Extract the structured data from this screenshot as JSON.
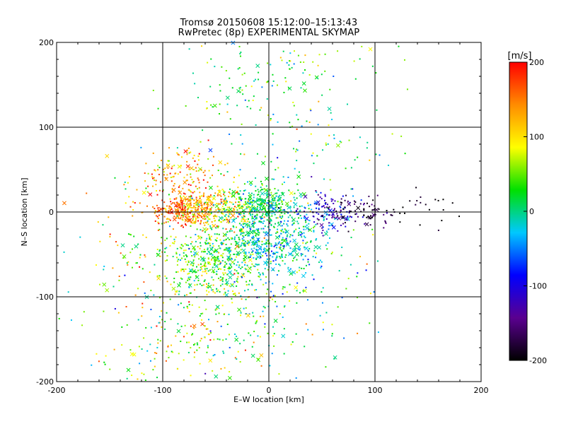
{
  "chart_data": {
    "type": "scatter",
    "title": "Tromsø 20150608 15:12:00–15:13:43",
    "subtitle": "RwPretec (8p) EXPERIMENTAL SKYMAP",
    "xlabel": "E–W location [km]",
    "ylabel": "N–S location [km]",
    "xlim": [
      -200,
      200
    ],
    "ylim": [
      -200,
      200
    ],
    "xticks": [
      -200,
      -100,
      0,
      100,
      200
    ],
    "yticks": [
      -200,
      -100,
      0,
      100,
      200
    ],
    "grid": true,
    "colorbar": {
      "label": "[m/s]",
      "range": [
        -200,
        200
      ],
      "ticks": [
        200,
        100,
        0,
        -100,
        -200
      ],
      "colormap": [
        "#000000",
        "#5a0090",
        "#0000ff",
        "#00c8ff",
        "#00e000",
        "#ffff00",
        "#ff8c00",
        "#ff0000"
      ]
    },
    "point_clusters": [
      {
        "x": -80,
        "y": 3,
        "sx": 14,
        "sy": 9,
        "n": 260,
        "v": 155,
        "vs": 35
      },
      {
        "x": -45,
        "y": 5,
        "sx": 18,
        "sy": 12,
        "n": 220,
        "v": 105,
        "vs": 35
      },
      {
        "x": -5,
        "y": 10,
        "sx": 15,
        "sy": 12,
        "n": 260,
        "v": 15,
        "vs": 30
      },
      {
        "x": -55,
        "y": -60,
        "sx": 28,
        "sy": 22,
        "n": 420,
        "v": 45,
        "vs": 40
      },
      {
        "x": -10,
        "y": -35,
        "sx": 25,
        "sy": 22,
        "n": 380,
        "v": -5,
        "vs": 35
      },
      {
        "x": 15,
        "y": -30,
        "sx": 25,
        "sy": 25,
        "n": 220,
        "v": -20,
        "vs": 30
      },
      {
        "x": 55,
        "y": 0,
        "sx": 15,
        "sy": 10,
        "n": 110,
        "v": -120,
        "vs": 30
      },
      {
        "x": 90,
        "y": -2,
        "sx": 15,
        "sy": 8,
        "n": 80,
        "v": -175,
        "vs": 25
      },
      {
        "x": 150,
        "y": 8,
        "sx": 15,
        "sy": 10,
        "n": 20,
        "v": -195,
        "vs": 15
      },
      {
        "x": -80,
        "y": 40,
        "sx": 22,
        "sy": 20,
        "n": 160,
        "v": 130,
        "vs": 45
      },
      {
        "x": 0,
        "y": 150,
        "sx": 45,
        "sy": 35,
        "n": 160,
        "v": 30,
        "vs": 50
      },
      {
        "x": -80,
        "y": -140,
        "sx": 45,
        "sy": 35,
        "n": 200,
        "v": 60,
        "vs": 60
      },
      {
        "x": 0,
        "y": -100,
        "sx": 50,
        "sy": 45,
        "n": 180,
        "v": 30,
        "vs": 60
      },
      {
        "x": 40,
        "y": 60,
        "sx": 40,
        "sy": 40,
        "n": 80,
        "v": 0,
        "vs": 60
      },
      {
        "x": -130,
        "y": -30,
        "sx": 30,
        "sy": 50,
        "n": 80,
        "v": 90,
        "vs": 70
      }
    ],
    "marker_note": "small dots and x markers, colored by velocity"
  }
}
